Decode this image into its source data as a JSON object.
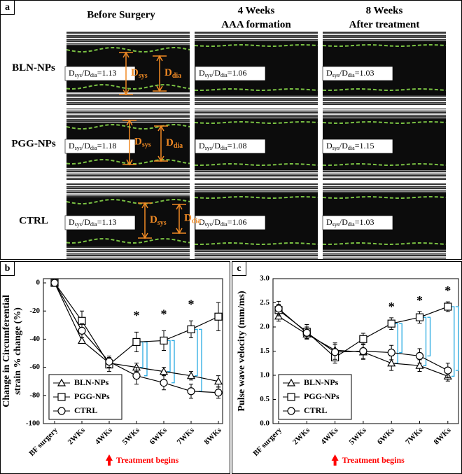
{
  "panel_a": {
    "label": "a",
    "columns": [
      [
        "Before Surgery"
      ],
      [
        "4 Weeks",
        "AAA formation"
      ],
      [
        "8 Weeks",
        "After treatment"
      ]
    ],
    "rows": [
      "BLN-NPs",
      "PGG-NPs",
      "CTRL"
    ],
    "ratio_text": {
      "d": "D",
      "sys": "sys",
      "slash": "/",
      "dia": "dia",
      "eq": "="
    },
    "ratios": [
      [
        1.13,
        1.06,
        1.03
      ],
      [
        1.18,
        1.08,
        1.15
      ],
      [
        1.13,
        1.06,
        1.03
      ]
    ]
  },
  "chart_data": [
    {
      "type": "line",
      "panel_label": "b",
      "y_label": [
        "Change in Circumferential",
        "strain % change (%)"
      ],
      "categories": [
        "BF surgery",
        "2WKs",
        "4WKs",
        "5WKs",
        "6WKs",
        "7WKs",
        "8WKs"
      ],
      "ylim": [
        -100,
        3
      ],
      "yticks": [
        0,
        -20,
        -40,
        -60,
        -80,
        -100
      ],
      "series": [
        {
          "name": "BLN-NPs",
          "color": "#000000",
          "marker": "triangle",
          "values": [
            0,
            -41,
            -57,
            -60,
            -63,
            -66,
            -70
          ],
          "errors": [
            0,
            2,
            3,
            3,
            3,
            3,
            4
          ]
        },
        {
          "name": "PGG-NPs",
          "color": "#000000",
          "marker": "square",
          "values": [
            0,
            -27,
            -58,
            -42,
            -41,
            -33,
            -24
          ],
          "errors": [
            0,
            7,
            5,
            7,
            7,
            6,
            10
          ]
        },
        {
          "name": "CTRL",
          "color": "#000000",
          "marker": "circle",
          "values": [
            0,
            -34,
            -56,
            -66,
            -71,
            -77,
            -78
          ],
          "errors": [
            0,
            5,
            4,
            6,
            5,
            5,
            4
          ]
        }
      ],
      "significance_marks": [
        null,
        null,
        null,
        "*",
        "*",
        "*",
        null
      ],
      "bracket_color": "#29abe2",
      "annotation": "Treatment begins",
      "annotation_color": "#ff0000",
      "legend": "lower left",
      "grid": false
    },
    {
      "type": "line",
      "panel_label": "c",
      "y_label": [
        "Pulse wave velocity (mm/ms)"
      ],
      "categories": [
        "BF surgery",
        "2WKs",
        "4WKs",
        "5WKs",
        "6WKs",
        "7WKs",
        "8WKs"
      ],
      "ylim": [
        0,
        3
      ],
      "yticks": [
        {
          "value": 0,
          "label": "0.0"
        },
        0.5,
        {
          "value": 1,
          "label": "1.0"
        },
        1.5,
        {
          "value": 2,
          "label": "2.0"
        },
        2.5,
        {
          "value": 3,
          "label": "3.0"
        }
      ],
      "series": [
        {
          "name": "BLN-NPs",
          "color": "#000000",
          "marker": "triangle",
          "values": [
            2.22,
            1.85,
            1.52,
            1.48,
            1.25,
            1.2,
            0.98
          ],
          "errors": [
            0.1,
            0.1,
            0.15,
            0.15,
            0.15,
            0.12,
            0.1
          ]
        },
        {
          "name": "PGG-NPs",
          "color": "#000000",
          "marker": "square",
          "values": [
            2.35,
            1.9,
            1.37,
            1.75,
            2.07,
            2.2,
            2.42
          ],
          "errors": [
            0.12,
            0.15,
            0.12,
            0.12,
            0.12,
            0.12,
            0.1
          ]
        },
        {
          "name": "CTRL",
          "color": "#000000",
          "marker": "circle",
          "values": [
            2.38,
            1.88,
            1.48,
            1.5,
            1.47,
            1.4,
            1.1
          ],
          "errors": [
            0.15,
            0.12,
            0.15,
            0.15,
            0.15,
            0.15,
            0.15
          ]
        }
      ],
      "significance_marks": [
        null,
        null,
        null,
        null,
        "*",
        "*",
        "*"
      ],
      "bracket_color": "#29abe2",
      "annotation": "Treatment begins",
      "annotation_color": "#ff0000",
      "legend": "lower left",
      "grid": false
    }
  ]
}
